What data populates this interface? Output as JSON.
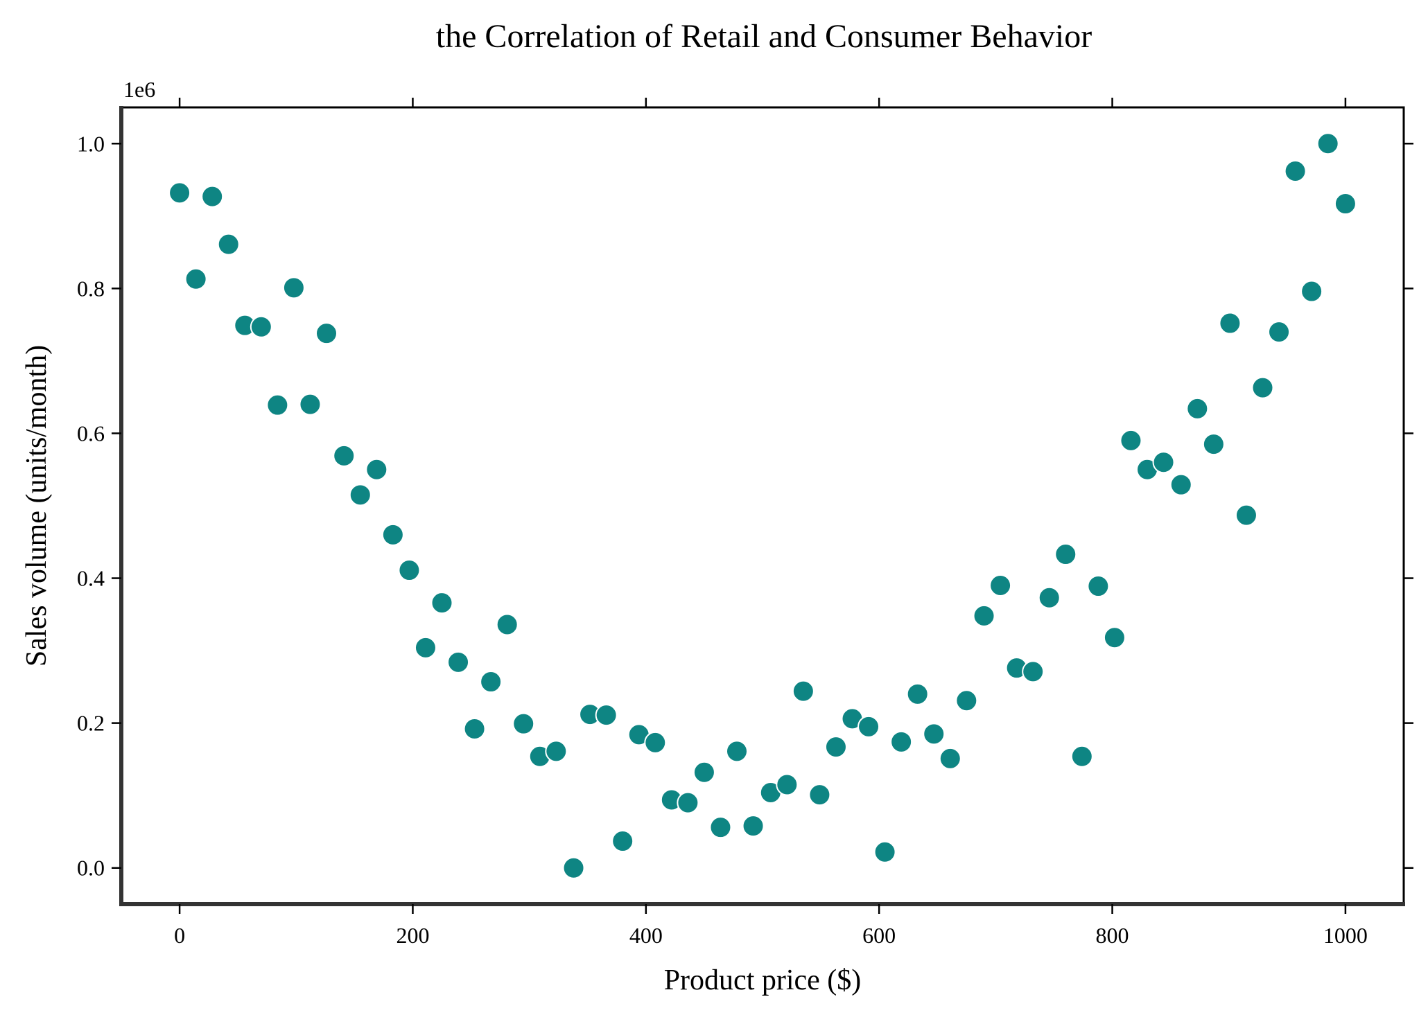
{
  "chart_data": {
    "type": "scatter",
    "title": "the Correlation of Retail and Consumer Behavior",
    "xlabel": "Product price ($)",
    "ylabel": "Sales volume (units/month)",
    "y_offset_label": "1e6",
    "y_scale": 1000000,
    "xlim": [
      -50,
      1050
    ],
    "ylim": [
      -0.05,
      1.05
    ],
    "x_ticks": [
      0,
      200,
      400,
      600,
      800,
      1000
    ],
    "x_tick_labels": [
      "0",
      "200",
      "400",
      "600",
      "800",
      "1000"
    ],
    "y_ticks": [
      0.0,
      0.2,
      0.4,
      0.6,
      0.8,
      1.0
    ],
    "y_tick_labels": [
      "0.0",
      "0.2",
      "0.4",
      "0.6",
      "0.8",
      "1.0"
    ],
    "grid": false,
    "marker_color": "#0e8583",
    "marker_edge_color": "#ffffff",
    "points": [
      {
        "x": 0,
        "y": 0.932
      },
      {
        "x": 14,
        "y": 0.813
      },
      {
        "x": 28,
        "y": 0.927
      },
      {
        "x": 42,
        "y": 0.861
      },
      {
        "x": 56,
        "y": 0.749
      },
      {
        "x": 70,
        "y": 0.747
      },
      {
        "x": 84,
        "y": 0.639
      },
      {
        "x": 98,
        "y": 0.801
      },
      {
        "x": 112,
        "y": 0.64
      },
      {
        "x": 126,
        "y": 0.738
      },
      {
        "x": 141,
        "y": 0.569
      },
      {
        "x": 155,
        "y": 0.515
      },
      {
        "x": 169,
        "y": 0.55
      },
      {
        "x": 183,
        "y": 0.46
      },
      {
        "x": 197,
        "y": 0.411
      },
      {
        "x": 211,
        "y": 0.304
      },
      {
        "x": 225,
        "y": 0.366
      },
      {
        "x": 239,
        "y": 0.284
      },
      {
        "x": 253,
        "y": 0.192
      },
      {
        "x": 267,
        "y": 0.257
      },
      {
        "x": 281,
        "y": 0.336
      },
      {
        "x": 295,
        "y": 0.199
      },
      {
        "x": 309,
        "y": 0.154
      },
      {
        "x": 323,
        "y": 0.161
      },
      {
        "x": 338,
        "y": 0.0
      },
      {
        "x": 352,
        "y": 0.212
      },
      {
        "x": 366,
        "y": 0.211
      },
      {
        "x": 380,
        "y": 0.037
      },
      {
        "x": 394,
        "y": 0.184
      },
      {
        "x": 408,
        "y": 0.173
      },
      {
        "x": 422,
        "y": 0.094
      },
      {
        "x": 436,
        "y": 0.09
      },
      {
        "x": 450,
        "y": 0.132
      },
      {
        "x": 464,
        "y": 0.056
      },
      {
        "x": 478,
        "y": 0.161
      },
      {
        "x": 492,
        "y": 0.058
      },
      {
        "x": 507,
        "y": 0.104
      },
      {
        "x": 521,
        "y": 0.115
      },
      {
        "x": 535,
        "y": 0.244
      },
      {
        "x": 549,
        "y": 0.101
      },
      {
        "x": 563,
        "y": 0.167
      },
      {
        "x": 577,
        "y": 0.206
      },
      {
        "x": 591,
        "y": 0.195
      },
      {
        "x": 605,
        "y": 0.022
      },
      {
        "x": 619,
        "y": 0.174
      },
      {
        "x": 633,
        "y": 0.24
      },
      {
        "x": 647,
        "y": 0.185
      },
      {
        "x": 661,
        "y": 0.151
      },
      {
        "x": 675,
        "y": 0.231
      },
      {
        "x": 690,
        "y": 0.348
      },
      {
        "x": 704,
        "y": 0.39
      },
      {
        "x": 718,
        "y": 0.276
      },
      {
        "x": 732,
        "y": 0.271
      },
      {
        "x": 746,
        "y": 0.373
      },
      {
        "x": 760,
        "y": 0.433
      },
      {
        "x": 774,
        "y": 0.154
      },
      {
        "x": 788,
        "y": 0.389
      },
      {
        "x": 802,
        "y": 0.318
      },
      {
        "x": 816,
        "y": 0.59
      },
      {
        "x": 830,
        "y": 0.55
      },
      {
        "x": 844,
        "y": 0.56
      },
      {
        "x": 859,
        "y": 0.529
      },
      {
        "x": 873,
        "y": 0.634
      },
      {
        "x": 887,
        "y": 0.585
      },
      {
        "x": 901,
        "y": 0.752
      },
      {
        "x": 915,
        "y": 0.487
      },
      {
        "x": 929,
        "y": 0.663
      },
      {
        "x": 943,
        "y": 0.74
      },
      {
        "x": 957,
        "y": 0.962
      },
      {
        "x": 971,
        "y": 0.796
      },
      {
        "x": 985,
        "y": 1.0
      },
      {
        "x": 1000,
        "y": 0.917
      }
    ]
  }
}
